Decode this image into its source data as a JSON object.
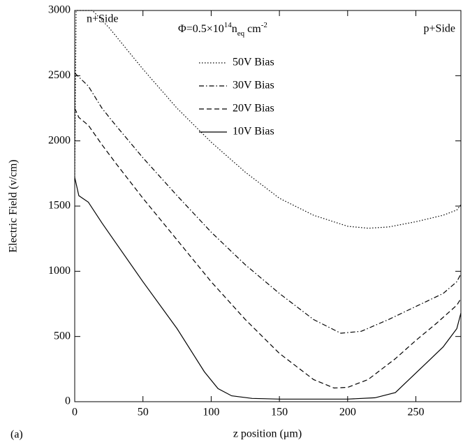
{
  "chart_data": {
    "type": "line",
    "panel_label": "(a)",
    "xlabel": "z position (μm)",
    "ylabel": "Electric Field (v/cm)",
    "annotations": [
      "n+Side",
      "p+Side"
    ],
    "fluence_label": [
      {
        "text": "Φ=0.5×10"
      },
      {
        "text": "14",
        "style": "sup"
      },
      {
        "text": "n"
      },
      {
        "text": "eq",
        "style": "sub"
      },
      {
        "text": " cm"
      },
      {
        "text": "-2",
        "style": "sup"
      }
    ],
    "xlim": [
      0,
      283
    ],
    "ylim": [
      0,
      3000
    ],
    "xticks": [
      0,
      50,
      100,
      150,
      200,
      250
    ],
    "yticks": [
      0,
      500,
      1000,
      1500,
      2000,
      2500,
      3000
    ],
    "legend": "upper center",
    "series": [
      {
        "name": "50V Bias",
        "color": "#000000",
        "dash": "dotted",
        "x": [
          0,
          1,
          13,
          25,
          50,
          75,
          100,
          125,
          150,
          175,
          200,
          215,
          230,
          250,
          270,
          280,
          283
        ],
        "values": [
          1700,
          3000,
          3000,
          2870,
          2550,
          2250,
          1990,
          1760,
          1560,
          1430,
          1345,
          1330,
          1340,
          1380,
          1430,
          1470,
          1510
        ]
      },
      {
        "name": "30V Bias",
        "color": "#000000",
        "dash": "dashdot",
        "x": [
          0,
          2,
          10,
          20,
          30,
          50,
          75,
          100,
          125,
          150,
          175,
          195,
          210,
          230,
          250,
          270,
          280,
          283
        ],
        "values": [
          2520,
          2500,
          2420,
          2250,
          2120,
          1870,
          1580,
          1300,
          1050,
          830,
          630,
          525,
          540,
          630,
          730,
          830,
          920,
          980
        ]
      },
      {
        "name": "20V Bias",
        "color": "#000000",
        "dash": "dashed",
        "x": [
          0,
          3,
          10,
          20,
          30,
          50,
          75,
          100,
          125,
          150,
          175,
          190,
          200,
          215,
          235,
          250,
          265,
          280,
          283
        ],
        "values": [
          2250,
          2180,
          2120,
          1970,
          1830,
          1560,
          1240,
          920,
          630,
          370,
          170,
          105,
          110,
          170,
          330,
          470,
          600,
          740,
          790
        ]
      },
      {
        "name": "10V Bias",
        "color": "#000000",
        "dash": "solid",
        "x": [
          0,
          3,
          10,
          20,
          30,
          50,
          75,
          95,
          105,
          115,
          130,
          150,
          200,
          220,
          235,
          245,
          260,
          270,
          280,
          283
        ],
        "values": [
          1720,
          1580,
          1530,
          1370,
          1220,
          920,
          560,
          230,
          100,
          45,
          25,
          20,
          20,
          30,
          70,
          170,
          320,
          420,
          560,
          680
        ]
      }
    ]
  }
}
